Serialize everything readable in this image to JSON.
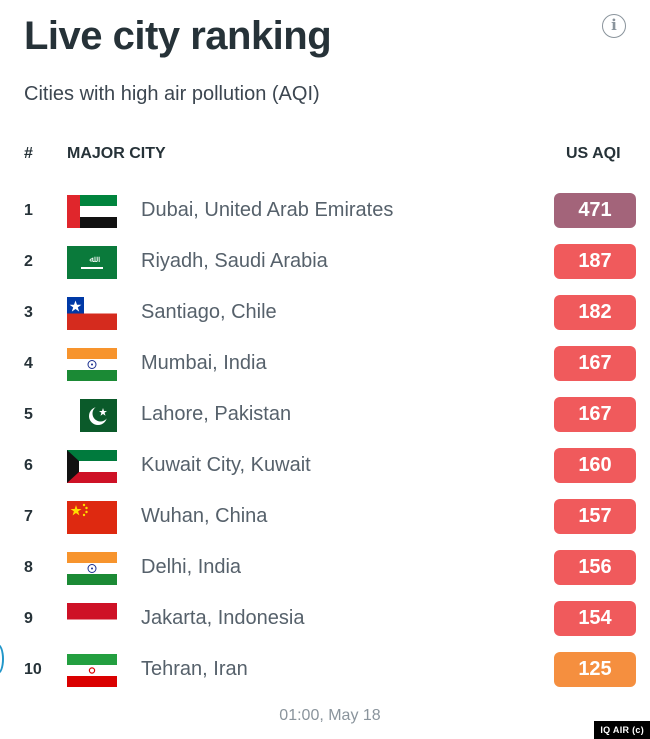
{
  "header": {
    "title": "Live city ranking",
    "subtitle": "Cities with high air pollution (AQI)",
    "info_icon": "info-icon"
  },
  "table": {
    "columns": {
      "rank": "#",
      "city": "MAJOR CITY",
      "aqi": "US AQI"
    },
    "rows": [
      {
        "rank": "1",
        "city": "Dubai, United Arab Emirates",
        "aqi": "471",
        "flag": "uae",
        "color": "#a3647a"
      },
      {
        "rank": "2",
        "city": "Riyadh, Saudi Arabia",
        "aqi": "187",
        "flag": "saudi-arabia",
        "color": "#f05a5c"
      },
      {
        "rank": "3",
        "city": "Santiago, Chile",
        "aqi": "182",
        "flag": "chile",
        "color": "#f05a5c"
      },
      {
        "rank": "4",
        "city": "Mumbai, India",
        "aqi": "167",
        "flag": "india",
        "color": "#f05a5c"
      },
      {
        "rank": "5",
        "city": "Lahore, Pakistan",
        "aqi": "167",
        "flag": "pakistan",
        "color": "#f05a5c"
      },
      {
        "rank": "6",
        "city": "Kuwait City, Kuwait",
        "aqi": "160",
        "flag": "kuwait",
        "color": "#f05a5c"
      },
      {
        "rank": "7",
        "city": "Wuhan, China",
        "aqi": "157",
        "flag": "china",
        "color": "#f05a5c"
      },
      {
        "rank": "8",
        "city": "Delhi, India",
        "aqi": "156",
        "flag": "india",
        "color": "#f05a5c"
      },
      {
        "rank": "9",
        "city": "Jakarta, Indonesia",
        "aqi": "154",
        "flag": "indonesia",
        "color": "#f05a5c"
      },
      {
        "rank": "10",
        "city": "Tehran, Iran",
        "aqi": "125",
        "flag": "iran",
        "color": "#f58f3f"
      }
    ]
  },
  "footer": {
    "timestamp": "01:00, May 18",
    "credit": "IQ AIR (c)"
  }
}
